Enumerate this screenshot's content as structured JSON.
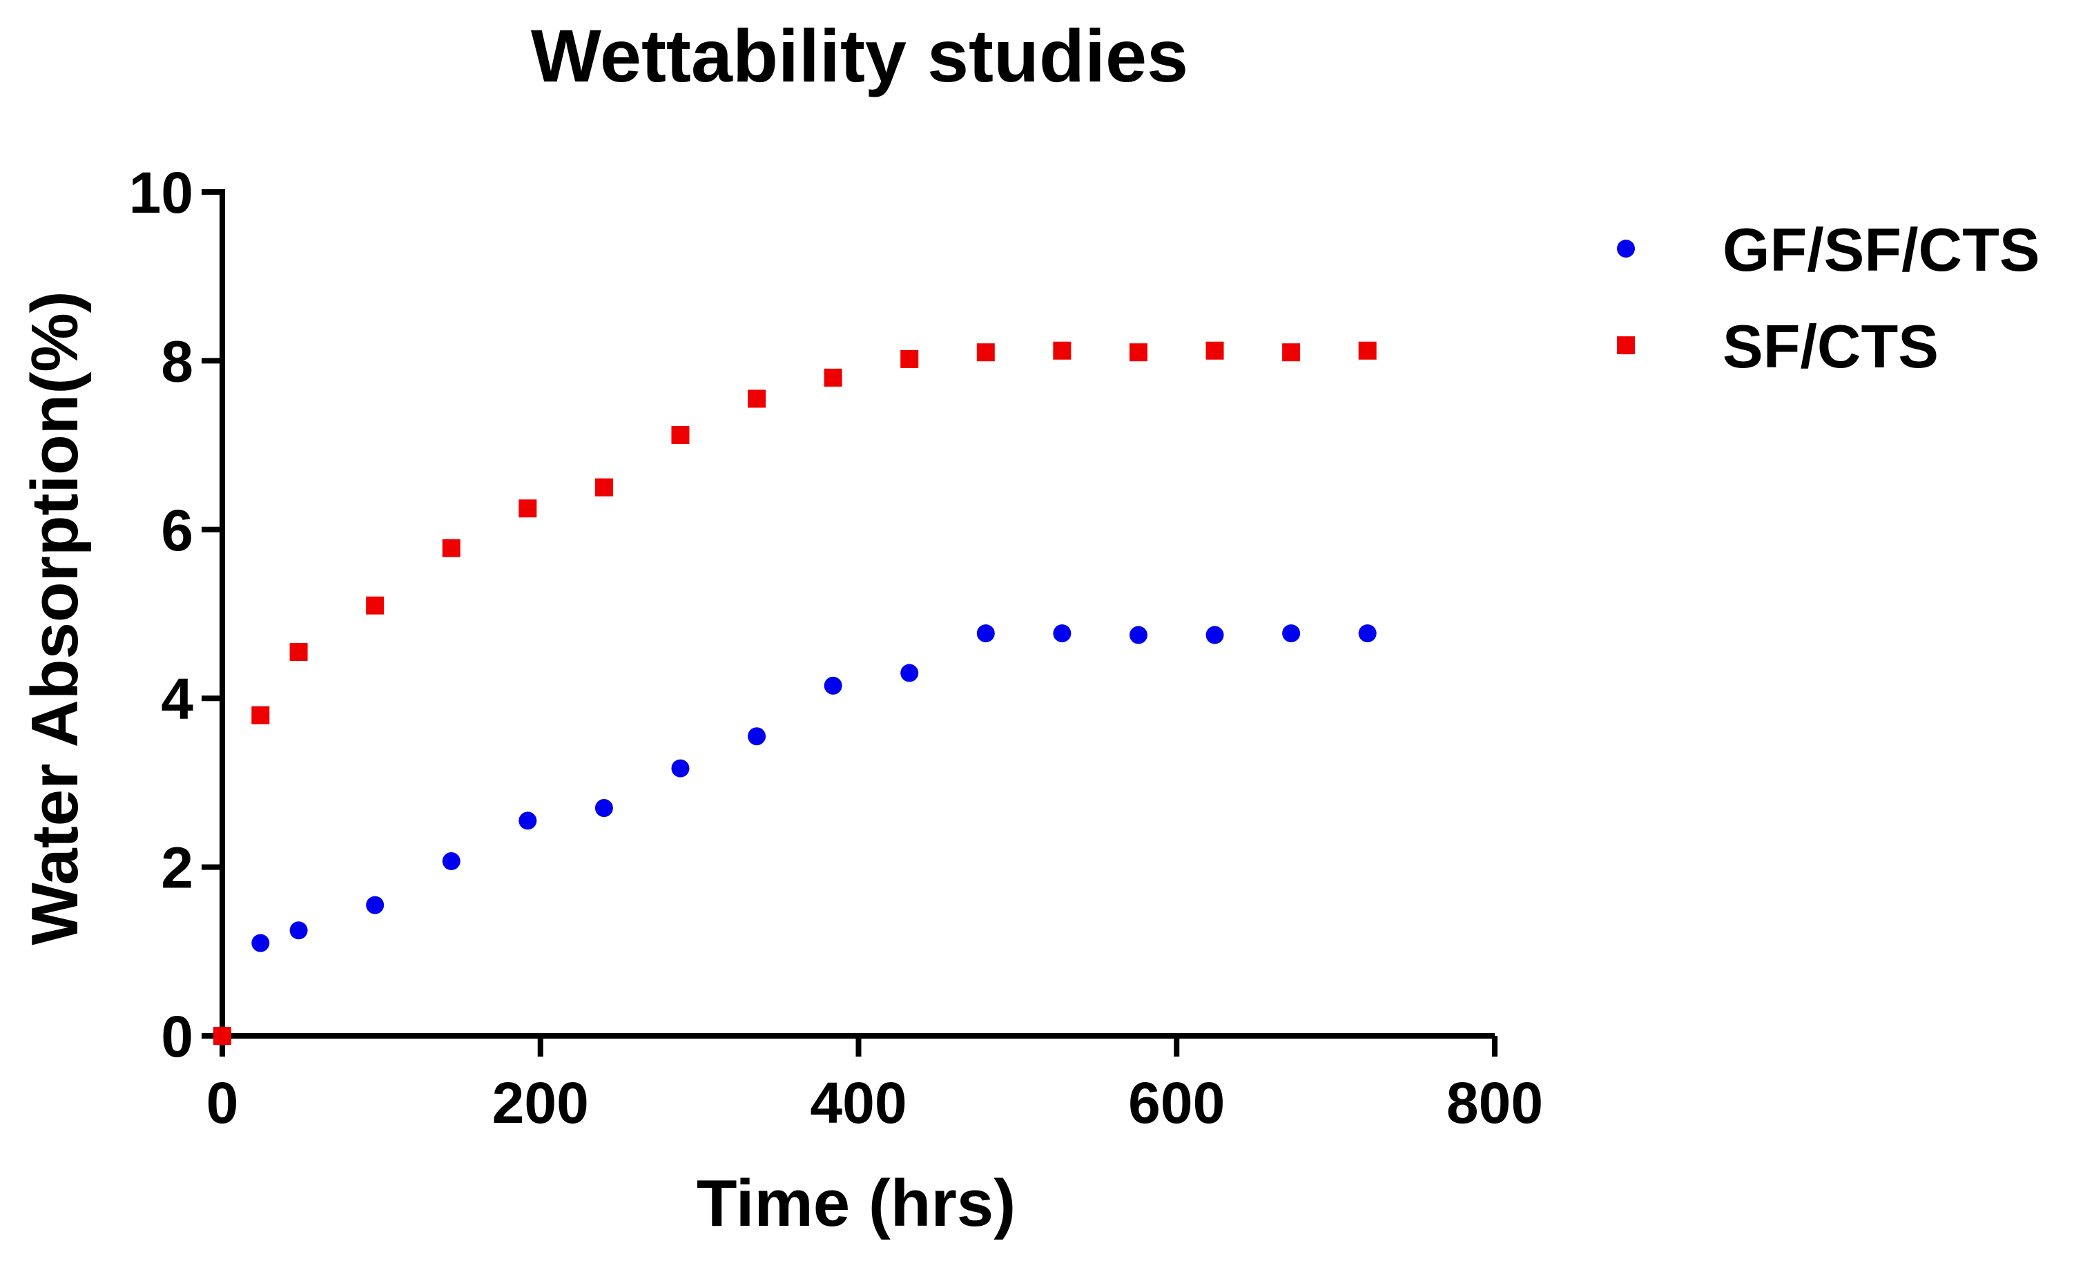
{
  "chart_data": {
    "type": "scatter",
    "title": "Wettability studies",
    "xlabel": "Time (hrs)",
    "ylabel": "Water Absorption(%)",
    "xlim": [
      0,
      800
    ],
    "ylim": [
      0,
      10
    ],
    "xticks": [
      0,
      200,
      400,
      600,
      800
    ],
    "yticks": [
      0,
      2,
      4,
      6,
      8,
      10
    ],
    "grid": false,
    "legend_position": "top-right, outside plot area",
    "series": [
      {
        "name": "GF/SF/CTS",
        "marker": "circle",
        "color": "#0000ee",
        "x": [
          24,
          48,
          96,
          144,
          192,
          240,
          288,
          336,
          384,
          432,
          480,
          528,
          576,
          624,
          672,
          720
        ],
        "y": [
          1.1,
          1.25,
          1.55,
          2.07,
          2.55,
          2.7,
          3.17,
          3.55,
          4.15,
          4.3,
          4.77,
          4.77,
          4.75,
          4.75,
          4.77,
          4.77
        ]
      },
      {
        "name": "SF/CTS",
        "marker": "square",
        "color": "#ee0000",
        "x": [
          0,
          24,
          48,
          96,
          144,
          192,
          240,
          288,
          336,
          384,
          432,
          480,
          528,
          576,
          624,
          672,
          720
        ],
        "y": [
          0,
          3.8,
          4.55,
          5.1,
          5.78,
          6.25,
          6.5,
          7.12,
          7.55,
          7.8,
          8.02,
          8.1,
          8.12,
          8.1,
          8.12,
          8.1,
          8.12
        ]
      }
    ]
  }
}
